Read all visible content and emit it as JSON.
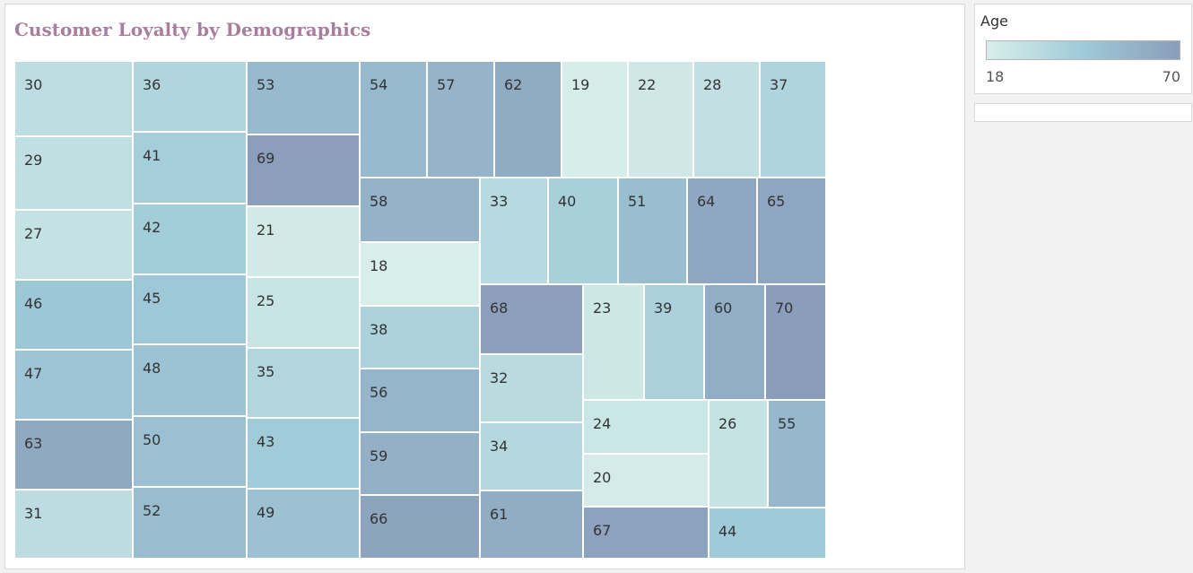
{
  "chart_data": {
    "type": "treemap",
    "title": "Customer Loyalty by Demographics",
    "color_legend": {
      "title": "Age",
      "min": 18,
      "max": 70,
      "min_label": "18",
      "max_label": "70",
      "color_min": "#d8eeea",
      "color_mid": "#9fcad8",
      "color_max": "#8a9dbb"
    },
    "tiles": [
      30,
      29,
      27,
      46,
      47,
      63,
      31,
      36,
      41,
      42,
      45,
      48,
      50,
      52,
      53,
      69,
      21,
      25,
      35,
      43,
      49,
      54,
      57,
      62,
      19,
      22,
      28,
      37,
      58,
      18,
      38,
      56,
      59,
      66,
      33,
      40,
      51,
      64,
      65,
      68,
      32,
      34,
      61,
      23,
      39,
      60,
      70,
      24,
      20,
      26,
      55,
      67,
      44
    ]
  }
}
